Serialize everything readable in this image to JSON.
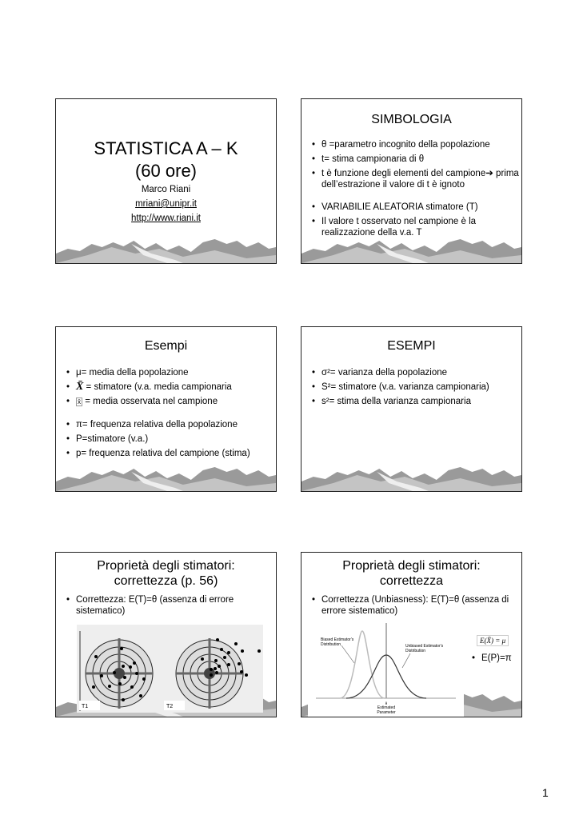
{
  "slides": [
    {
      "title_line1": "STATISTICA  A – K",
      "title_line2": "(60 ore)",
      "author": "Marco Riani",
      "email": "mriani@unipr.it",
      "website": "http://www.riani.it"
    },
    {
      "title": "SIMBOLOGIA",
      "bullets": [
        "θ =parametro incognito della popolazione",
        "t= stima campionaria di θ",
        "t è funzione degli elementi del campione➔ prima dell’estrazione il valore di t è ignoto",
        "VARIABILIE ALEATORIA stimatore (T)",
        "Il valore t osservato nel campione è la realizzazione della v.a. T"
      ]
    },
    {
      "title": "Esempi",
      "bullets": [
        "μ= media della popolazione",
        "= stimatore (v.a. media campionaria",
        "= media osservata nel campione",
        "π= frequenza relativa della popolazione",
        "P=stimatore (v.a.)",
        "p= frequenza relativa del campione (stima)"
      ],
      "xbar_symbol": "X̄"
    },
    {
      "title": "ESEMPI",
      "bullets": [
        "σ²= varianza della popolazione",
        "S²= stimatore (v.a. varianza campionaria)",
        "s²= stima della varianza campionaria"
      ]
    },
    {
      "title_line1": "Proprietà degli stimatori:",
      "title_line2": "correttezza (p. 56)",
      "bullets": [
        "Correttezza: E(T)=θ (assenza di errore sistematico)"
      ],
      "figure_labels": [
        "T1",
        "T2"
      ]
    },
    {
      "title_line1": "Proprietà degli stimatori:",
      "title_line2": "correttezza",
      "bullets": [
        "Correttezza (Unbiasness): E(T)=θ (assenza di errore sistematico)",
        "E(P)=π"
      ],
      "formula": "E(X̄) = μ",
      "figure": {
        "biased_label": "Biased Estimator's Distribution",
        "unbiased_label": "Unbiased Estimator's Distribution",
        "axis_symbol": "θ",
        "axis_label": "Estimated Parameter"
      }
    }
  ],
  "page_number": "1"
}
